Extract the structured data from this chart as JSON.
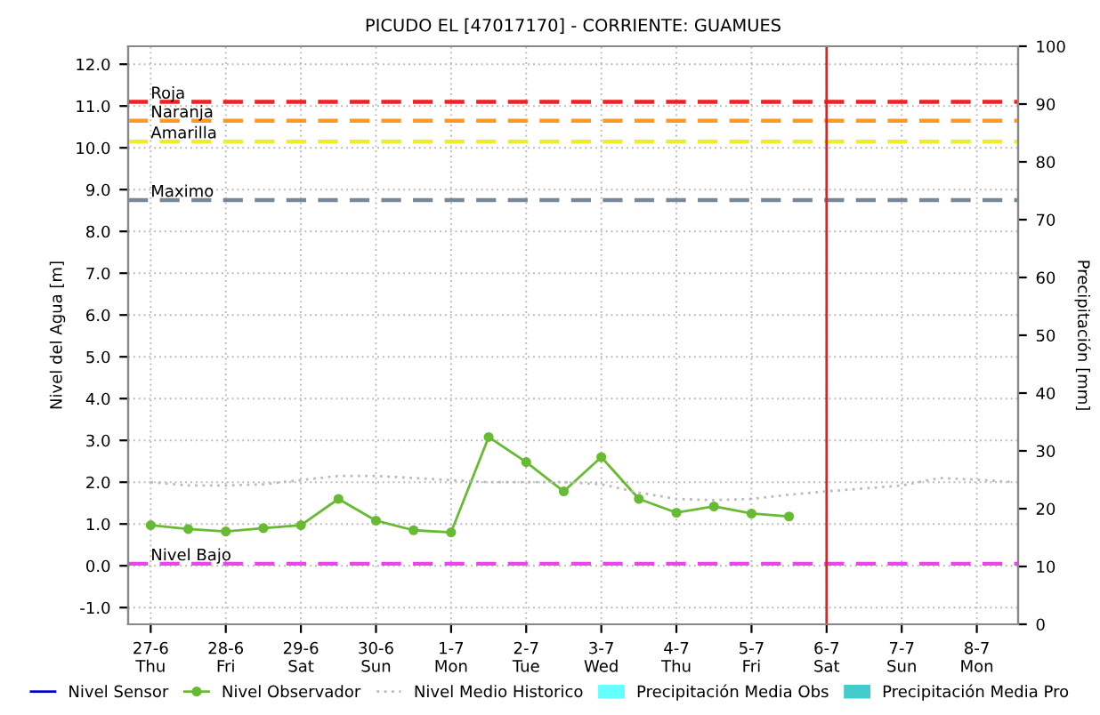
{
  "chart_data": {
    "type": "line",
    "title": "PICUDO EL [47017170] - CORRIENTE: GUAMUES",
    "ylabel": "Nivel del Agua [m]",
    "y2label": "Precipitación [mm]",
    "categories": [
      "27-6\nThu",
      null,
      "28-6\nFri",
      null,
      "29-6\nSat",
      null,
      "30-6\nSun",
      null,
      "1-7\nMon",
      null,
      "2-7\nTue",
      null,
      "3-7\nWed",
      null,
      "4-7\nThu",
      null,
      "5-7\nFri",
      null,
      "6-7\nSat",
      null,
      "7-7\nSun",
      null,
      "8-7\nMon",
      null
    ],
    "ylim": [
      -1.4,
      12.43
    ],
    "yticks": [
      {
        "value": -1,
        "label": "-1.0"
      },
      {
        "value": 0,
        "label": "0.0"
      },
      {
        "value": 1,
        "label": "1.0"
      },
      {
        "value": 2,
        "label": "2.0"
      },
      {
        "value": 3,
        "label": "3.0"
      },
      {
        "value": 4,
        "label": "4.0"
      },
      {
        "value": 5,
        "label": "5.0"
      },
      {
        "value": 6,
        "label": "6.0"
      },
      {
        "value": 7,
        "label": "7.0"
      },
      {
        "value": 8,
        "label": "8.0"
      },
      {
        "value": 9,
        "label": "9.0"
      },
      {
        "value": 10,
        "label": "10.0"
      },
      {
        "value": 11,
        "label": "11.0"
      },
      {
        "value": 12,
        "label": "12.0"
      }
    ],
    "y2lim": [
      0,
      100
    ],
    "y2ticks": [
      0,
      10,
      20,
      30,
      40,
      50,
      60,
      70,
      80,
      90,
      100
    ],
    "grid": true,
    "legend": "bottom",
    "series": [
      {
        "name": "Nivel Sensor",
        "color": "#0000cc",
        "values": [
          null,
          null,
          null,
          null,
          null,
          null,
          null,
          null,
          null,
          null,
          null,
          null,
          null,
          null,
          null,
          null,
          null,
          null,
          null,
          null,
          null,
          null,
          null,
          null
        ]
      },
      {
        "name": "Nivel Observador",
        "color": "#66bb33",
        "marker": "circle",
        "line_style": "solid",
        "values": [
          0.97,
          0.88,
          0.82,
          0.9,
          0.97,
          1.6,
          1.08,
          0.85,
          0.8,
          3.08,
          2.48,
          1.78,
          2.6,
          1.6,
          1.27,
          1.42,
          1.25,
          1.18,
          null,
          null,
          null,
          null,
          null,
          null
        ]
      },
      {
        "name": "Nivel Medio Historico",
        "color": "#bbbbbb",
        "line_style": "dotted",
        "values": [
          2.0,
          1.92,
          1.92,
          1.95,
          2.05,
          2.15,
          2.15,
          2.1,
          2.05,
          2.0,
          2.0,
          2.0,
          1.95,
          1.75,
          1.6,
          1.57,
          1.6,
          1.7,
          1.78,
          1.85,
          1.92,
          2.1,
          2.06,
          2.0
        ]
      },
      {
        "name": "Precipitación Media Obs",
        "color": "#66ffff",
        "type": "bar",
        "values": [
          null,
          null,
          null,
          null,
          null,
          null,
          null,
          null,
          null,
          null,
          null,
          null,
          null,
          null,
          null,
          null,
          null,
          null,
          null,
          null,
          null,
          null,
          null,
          null
        ]
      },
      {
        "name": "Precipitación Media Pro",
        "color": "#44cccc",
        "type": "bar",
        "values": [
          null,
          null,
          null,
          null,
          null,
          null,
          null,
          null,
          null,
          null,
          null,
          null,
          null,
          null,
          null,
          null,
          null,
          null,
          null,
          null,
          null,
          null,
          null,
          null
        ]
      }
    ],
    "ref_lines": [
      {
        "axis": "y",
        "value": 11.1,
        "label": "Roja",
        "color": "#ee2222",
        "line_style": "dashed"
      },
      {
        "axis": "y",
        "value": 10.65,
        "label": "Naranja",
        "color": "#ff9922",
        "line_style": "dashed"
      },
      {
        "axis": "y",
        "value": 10.15,
        "label": "Amarilla",
        "color": "#eeee22",
        "line_style": "dashed"
      },
      {
        "axis": "y",
        "value": 8.75,
        "label": "Maximo",
        "color": "#778899",
        "line_style": "dashed"
      },
      {
        "axis": "y",
        "value": 0.05,
        "label": "Nivel Bajo",
        "color": "#ee44ee",
        "line_style": "dashed"
      },
      {
        "axis": "x",
        "value": "6-7\nSat",
        "color": "#dd2222",
        "line_style": "solid"
      }
    ]
  }
}
